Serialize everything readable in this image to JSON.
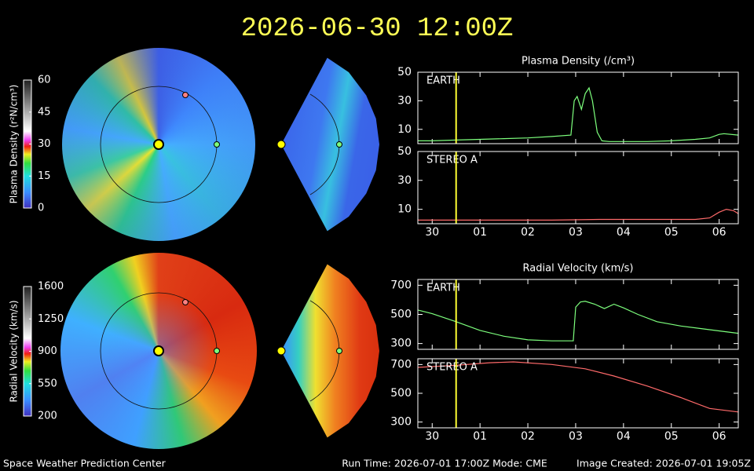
{
  "title": "2026-06-30 12:00Z",
  "footer": {
    "left": "Space Weather Prediction Center",
    "center": "Run Time: 2026-07-01 17:00Z  Mode: CME",
    "right": "Image Created: 2026-07-01 19:05Z"
  },
  "chart_data": [
    {
      "type": "line",
      "title": "Plasma Density (/cm³)",
      "marker_x": 0.5,
      "xlim": [
        -0.3,
        6.4
      ],
      "xticks": [
        0,
        1,
        2,
        3,
        4,
        5,
        6
      ],
      "ylim": [
        0,
        50
      ],
      "yticks": [
        10,
        30,
        50
      ],
      "x": [
        -0.3,
        0,
        0.5,
        1,
        1.5,
        2,
        2.5,
        2.9,
        2.97,
        3.03,
        3.12,
        3.2,
        3.28,
        3.35,
        3.45,
        3.55,
        3.7,
        4,
        4.5,
        5,
        5.5,
        5.8,
        6,
        6.1,
        6.4
      ],
      "series": [
        {
          "name": "EARTH",
          "color": "#7dff7d",
          "values": [
            2,
            2,
            2.5,
            3,
            3.5,
            4,
            5,
            6,
            30,
            33,
            24,
            35,
            39,
            30,
            8,
            2,
            1.5,
            1.5,
            1.5,
            2,
            3,
            4,
            6.5,
            7,
            6
          ]
        }
      ]
    },
    {
      "type": "line",
      "marker_x": 0.5,
      "xlim": [
        -0.3,
        6.4
      ],
      "ylim": [
        0,
        50
      ],
      "yticks": [
        10,
        30,
        50
      ],
      "xticks": [
        {
          "value": 0,
          "label": "30"
        },
        {
          "value": 1,
          "label": "01"
        },
        {
          "value": 2,
          "label": "02"
        },
        {
          "value": 3,
          "label": "03"
        },
        {
          "value": 4,
          "label": "04"
        },
        {
          "value": 5,
          "label": "05"
        },
        {
          "value": 6,
          "label": "06"
        }
      ],
      "x": [
        -0.3,
        0.5,
        1.5,
        2.5,
        3.5,
        4.5,
        5.5,
        5.8,
        6,
        6.15,
        6.3,
        6.4
      ],
      "series": [
        {
          "name": "STEREO A",
          "color": "#ff6a6a",
          "values": [
            2.5,
            2.5,
            2.5,
            2.5,
            3,
            3,
            3,
            4,
            8,
            10,
            9,
            7
          ]
        }
      ]
    },
    {
      "type": "line",
      "title": "Radial Velocity (km/s)",
      "marker_x": 0.5,
      "xlim": [
        -0.3,
        6.4
      ],
      "xticks": [
        0,
        1,
        2,
        3,
        4,
        5,
        6
      ],
      "ylim": [
        260,
        740
      ],
      "yticks": [
        300,
        500,
        700
      ],
      "x": [
        -0.3,
        0,
        0.5,
        1,
        1.5,
        2,
        2.5,
        2.95,
        3.0,
        3.1,
        3.2,
        3.4,
        3.6,
        3.8,
        4,
        4.3,
        4.7,
        5.2,
        5.8,
        6.4
      ],
      "series": [
        {
          "name": "EARTH",
          "color": "#7dff7d",
          "values": [
            530,
            505,
            450,
            390,
            350,
            325,
            318,
            318,
            550,
            585,
            590,
            570,
            540,
            570,
            545,
            500,
            450,
            420,
            395,
            370
          ]
        }
      ]
    },
    {
      "type": "line",
      "marker_x": 0.5,
      "xlim": [
        -0.3,
        6.4
      ],
      "ylim": [
        260,
        740
      ],
      "yticks": [
        300,
        500,
        700
      ],
      "xticks": [
        {
          "value": 0,
          "label": "30"
        },
        {
          "value": 1,
          "label": "01"
        },
        {
          "value": 2,
          "label": "02"
        },
        {
          "value": 3,
          "label": "03"
        },
        {
          "value": 4,
          "label": "04"
        },
        {
          "value": 5,
          "label": "05"
        },
        {
          "value": 6,
          "label": "06"
        }
      ],
      "x": [
        -0.3,
        0.5,
        1.2,
        1.7,
        2.5,
        3.2,
        3.8,
        4.5,
        5.2,
        5.8,
        6.4
      ],
      "series": [
        {
          "name": "STEREO A",
          "color": "#ff6a6a",
          "values": [
            680,
            695,
            712,
            718,
            700,
            670,
            620,
            550,
            470,
            395,
            370
          ]
        }
      ]
    },
    {
      "type": "colorbar",
      "label": "Plasma Density (r²N/cm³)",
      "ylim": [
        0,
        60
      ],
      "yticks": [
        0,
        15,
        30,
        45,
        60
      ]
    },
    {
      "type": "colorbar",
      "label": "Radial Velocity (km/s)",
      "ylim": [
        200,
        1600
      ],
      "yticks": [
        200,
        550,
        900,
        1250,
        1600
      ]
    }
  ]
}
